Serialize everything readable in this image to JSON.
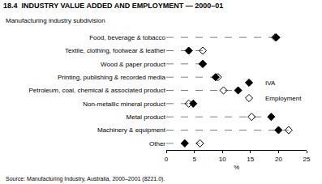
{
  "chart_data": {
    "type": "dot",
    "orientation": "horizontal",
    "title": "18.4  INDUSTRY VALUE ADDED AND EMPLOYMENT — 2000–01",
    "ylabel": "Manufacturing industry subdivision",
    "xlabel": "%",
    "source": "Source: Manufacturing Industry, Australia, 2000–2001 (8221.0).",
    "categories": [
      "Food, beverage & tobacco",
      "Textile, clothing, footwear & leather",
      "Wood & paper product",
      "Printing, publishing & recorded media",
      "Petroleum, coal, chemical & associated product",
      "Non-metallic mineral product",
      "Metal product",
      "Machinery & equipment",
      "Other"
    ],
    "series": [
      {
        "name": "IVA",
        "color": "#000000",
        "marker": "diamond",
        "values": [
          19.6,
          4.0,
          6.5,
          8.8,
          12.8,
          4.8,
          18.7,
          20.0,
          3.3
        ]
      },
      {
        "name": "Employment",
        "color": "#000000",
        "marker": "diamond-open",
        "values": [
          19.4,
          6.5,
          6.5,
          9.2,
          10.2,
          4.0,
          15.2,
          21.8,
          6.0
        ]
      }
    ],
    "xlim": [
      0,
      25
    ],
    "xticks": [
      0,
      5,
      10,
      15,
      20,
      25
    ],
    "line_style": "dashed",
    "grid": false,
    "legend": "right"
  }
}
